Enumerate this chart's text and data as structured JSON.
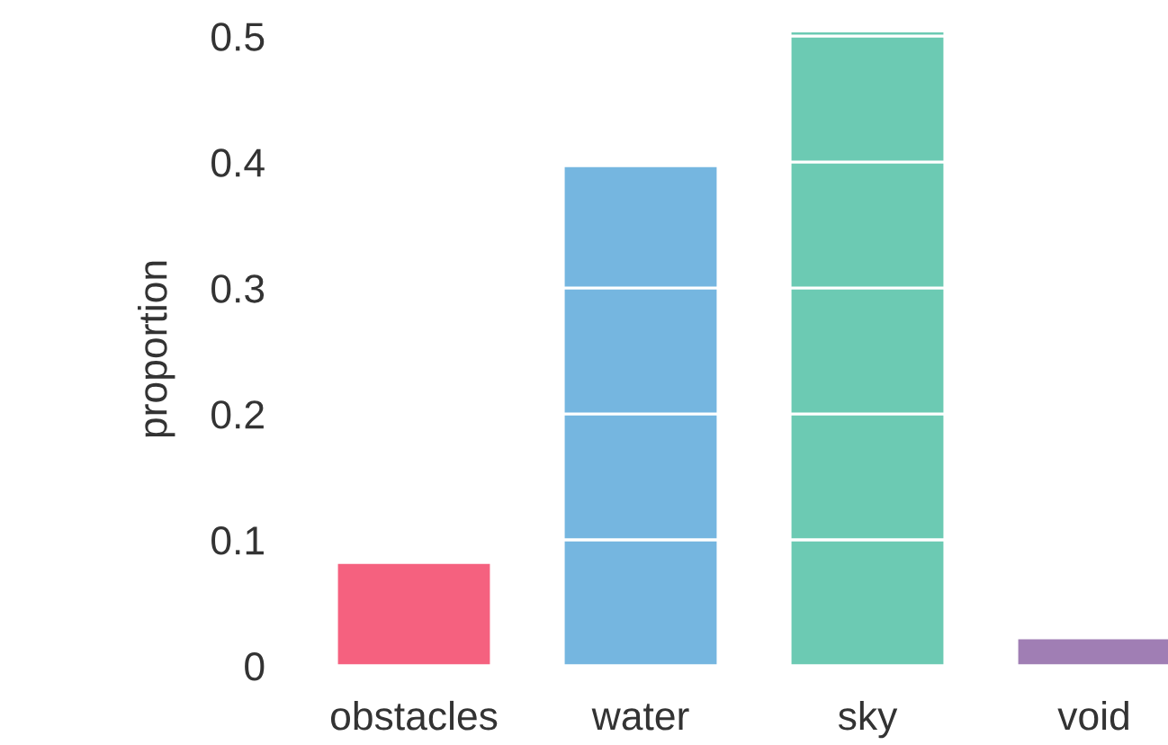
{
  "chart_data": {
    "type": "bar",
    "ylabel": "proportion",
    "categories": [
      "obstacles",
      "water",
      "sky",
      "void"
    ],
    "values": [
      0.081,
      0.396,
      0.503,
      0.021
    ],
    "colors": [
      "#f5617f",
      "#75b6e0",
      "#6ccab3",
      "#a07eb4"
    ],
    "ylim": [
      0,
      0.503
    ],
    "yticks": [
      0,
      0.1,
      0.2,
      0.3,
      0.4,
      0.5
    ],
    "grid": "y"
  }
}
